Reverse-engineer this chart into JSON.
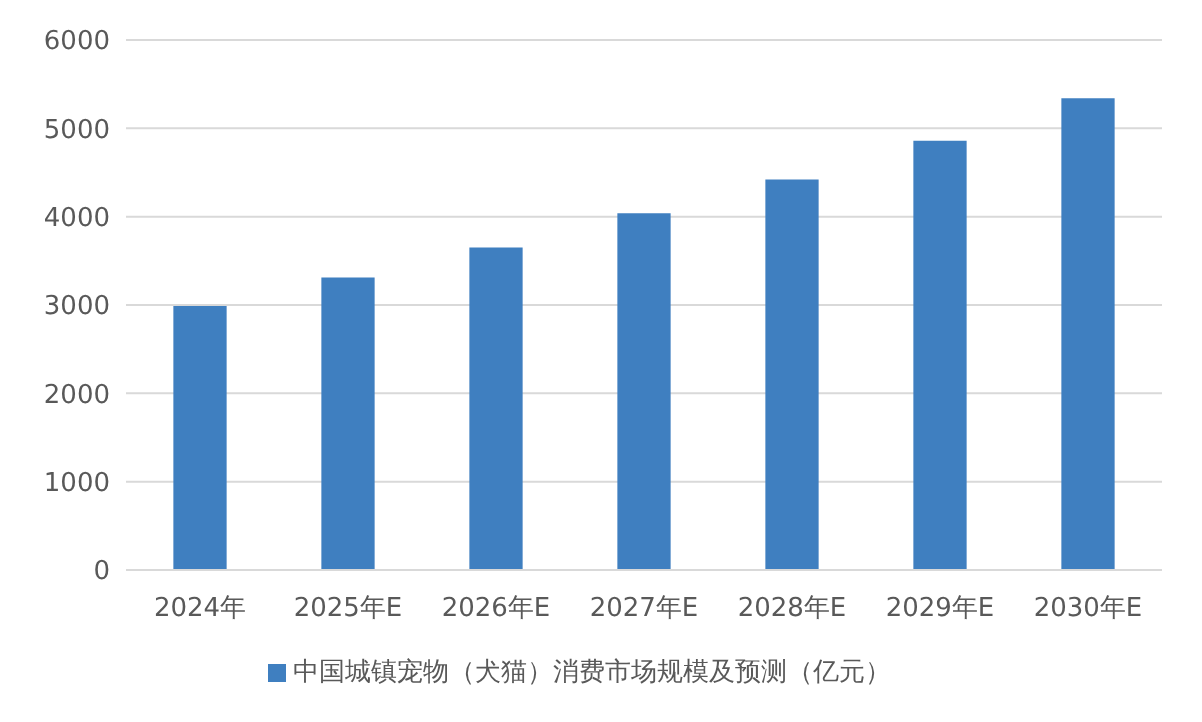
{
  "chart_data": {
    "type": "bar",
    "categories": [
      "2024年",
      "2025年E",
      "2026年E",
      "2027年E",
      "2028年E",
      "2029年E",
      "2030年E"
    ],
    "series": [
      {
        "name": "中国城镇宠物（犬猫）消费市场规模及预测（亿元）",
        "color": "#3f7fc0",
        "values": [
          2990,
          3310,
          3650,
          4040,
          4420,
          4860,
          5340
        ]
      }
    ],
    "ylim": [
      0,
      6000
    ],
    "yticks": [
      0,
      1000,
      2000,
      3000,
      4000,
      5000,
      6000
    ],
    "grid": "y",
    "legend": "bottom"
  }
}
